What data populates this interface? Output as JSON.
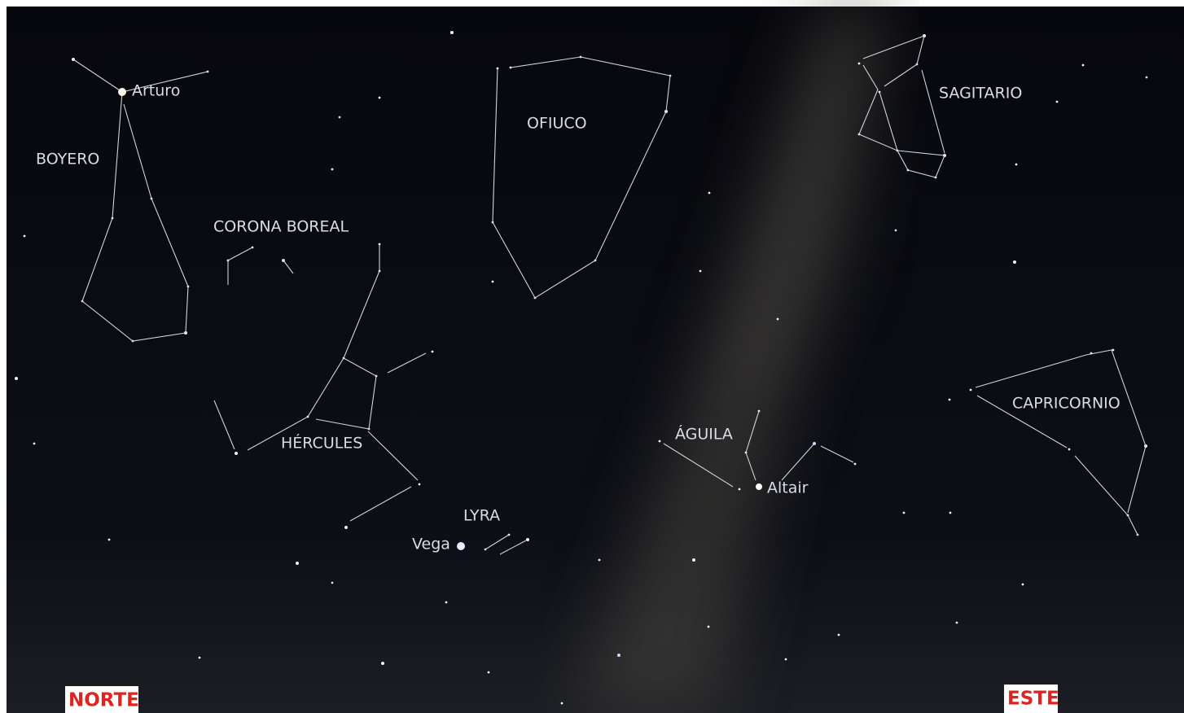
{
  "constellations": [
    "BOYERO",
    "CORONA BOREAL",
    "OFIUCO",
    "SAGITARIO",
    "HÉRCULES",
    "LYRA",
    "ÁGUILA",
    "CAPRICORNIO"
  ],
  "stars": [
    "Arturo",
    "Vega",
    "Altair"
  ],
  "directions": [
    "NORTE",
    "ESTE"
  ]
}
